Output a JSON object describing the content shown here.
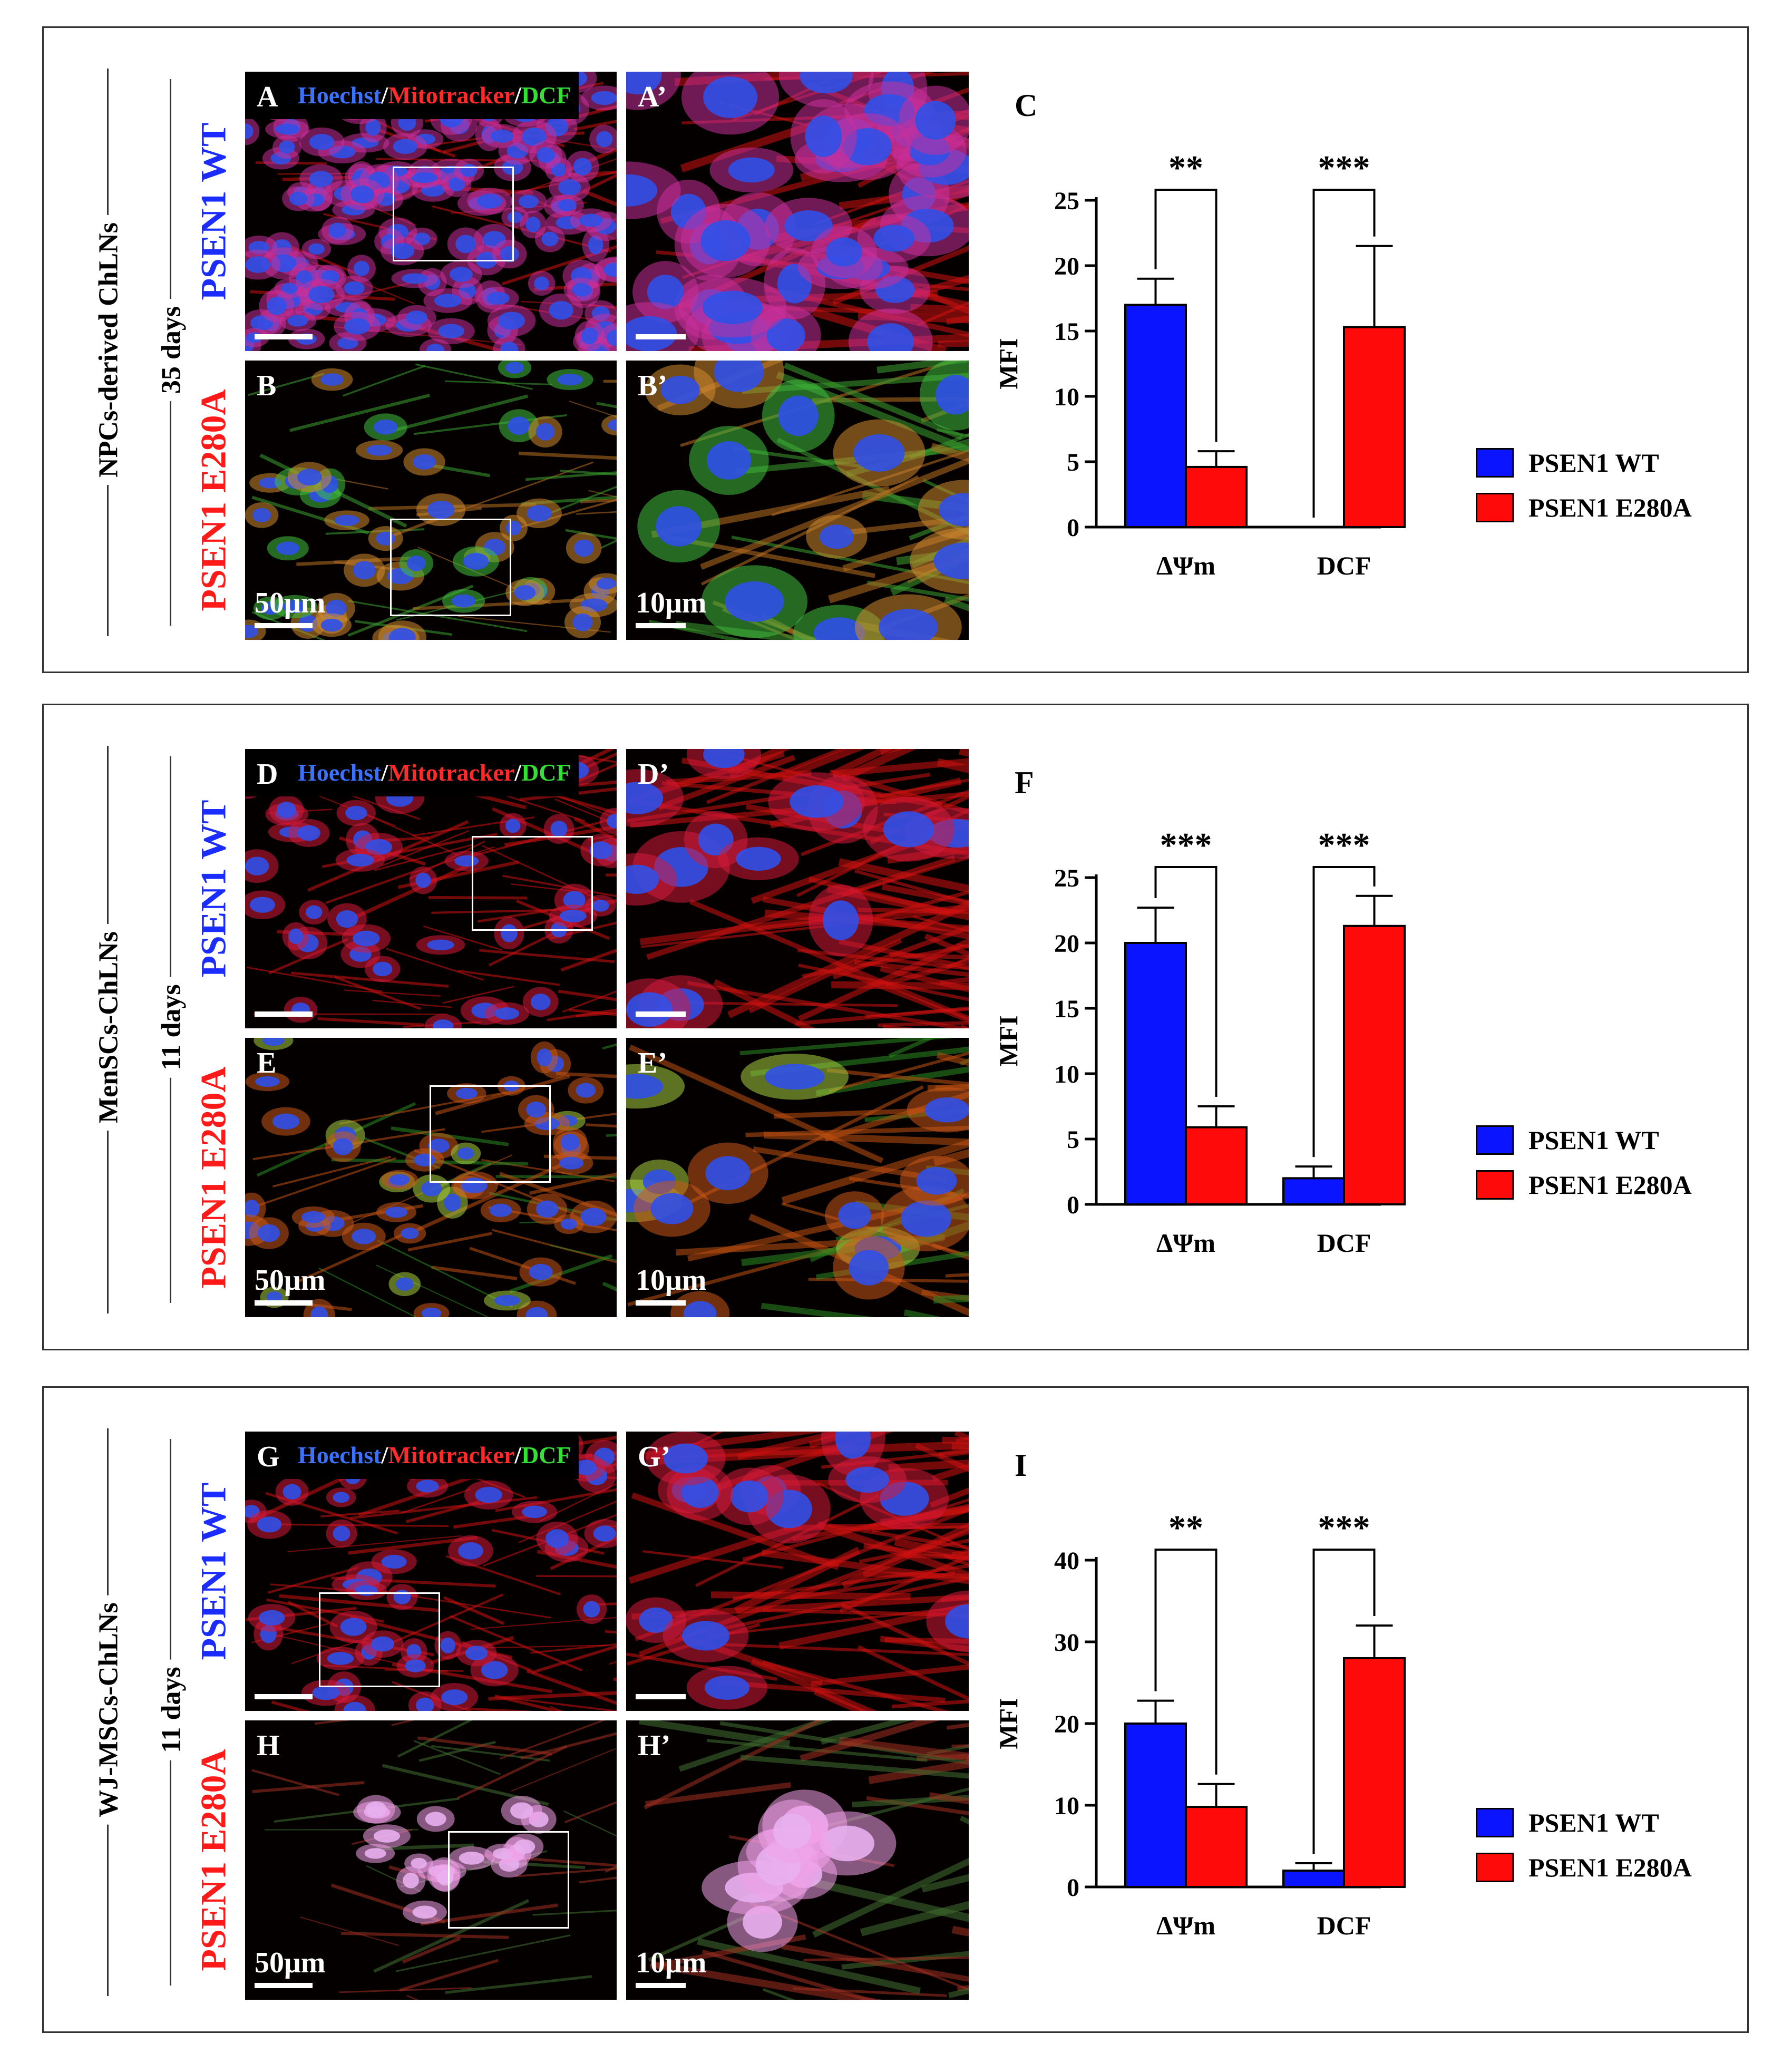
{
  "figure": {
    "rows": [
      {
        "row_label": "NPCs-derived ChLNs",
        "time_label": "35 days",
        "genotype_wt": "PSEN1 WT",
        "genotype_mut": "PSEN1 E280A",
        "stain": {
          "hoechst": "Hoechst",
          "sep": "/",
          "mitotracker": "Mitotracker",
          "dcf": "DCF"
        },
        "panels": {
          "a": "A",
          "a2": "A’",
          "b": "B",
          "b2": "B’"
        },
        "scale_low": "50μm",
        "scale_high": "10μm",
        "chart_letter": "C"
      },
      {
        "row_label": "MenSCs-ChLNs",
        "time_label": "11 days",
        "genotype_wt": "PSEN1 WT",
        "genotype_mut": "PSEN1 E280A",
        "stain": {
          "hoechst": "Hoechst",
          "sep": "/",
          "mitotracker": "Mitotracker",
          "dcf": "DCF"
        },
        "panels": {
          "a": "D",
          "a2": "D’",
          "b": "E",
          "b2": "E’"
        },
        "scale_low": "50μm",
        "scale_high": "10μm",
        "chart_letter": "F"
      },
      {
        "row_label": "WJ-MSCs-ChLNs",
        "time_label": "11 days",
        "genotype_wt": "PSEN1 WT",
        "genotype_mut": "PSEN1 E280A",
        "stain": {
          "hoechst": "Hoechst",
          "sep": "/",
          "mitotracker": "Mitotracker",
          "dcf": "DCF"
        },
        "panels": {
          "a": "G",
          "a2": "G’",
          "b": "H",
          "b2": "H’"
        },
        "scale_low": "50μm",
        "scale_high": "10μm",
        "chart_letter": "I"
      }
    ]
  },
  "colors": {
    "wt": "#0a14ff",
    "mut": "#ff0a0a",
    "wt_label": "#1a2cff",
    "mut_label": "#ff1a1a"
  },
  "chart_data": [
    {
      "type": "bar",
      "title": "",
      "ylabel": "MFI",
      "xlabel": "",
      "ylim": [
        0,
        25
      ],
      "yticks": [
        0,
        5,
        10,
        15,
        20,
        25
      ],
      "categories": [
        "ΔΨm",
        "DCF"
      ],
      "series": [
        {
          "name": "PSEN1 WT",
          "values": [
            17,
            0
          ],
          "errors": [
            2,
            0
          ]
        },
        {
          "name": "PSEN1 E280A",
          "values": [
            4.6,
            15.3
          ],
          "errors": [
            1.2,
            6.2
          ]
        }
      ],
      "significance": [
        "**",
        "***"
      ],
      "legend": "right"
    },
    {
      "type": "bar",
      "title": "",
      "ylabel": "MFI",
      "xlabel": "",
      "ylim": [
        0,
        25
      ],
      "yticks": [
        0,
        5,
        10,
        15,
        20,
        25
      ],
      "categories": [
        "ΔΨm",
        "DCF"
      ],
      "series": [
        {
          "name": "PSEN1 WT",
          "values": [
            20,
            2
          ],
          "errors": [
            2.7,
            0.9
          ]
        },
        {
          "name": "PSEN1 E280A",
          "values": [
            5.9,
            21.3
          ],
          "errors": [
            1.6,
            2.3
          ]
        }
      ],
      "significance": [
        "***",
        "***"
      ],
      "legend": "right"
    },
    {
      "type": "bar",
      "title": "",
      "ylabel": "MFI",
      "xlabel": "",
      "ylim": [
        0,
        40
      ],
      "yticks": [
        0,
        10,
        20,
        30,
        40
      ],
      "categories": [
        "ΔΨm",
        "DCF"
      ],
      "series": [
        {
          "name": "PSEN1 WT",
          "values": [
            20,
            2
          ],
          "errors": [
            2.8,
            0.9
          ]
        },
        {
          "name": "PSEN1 E280A",
          "values": [
            9.8,
            28
          ],
          "errors": [
            2.8,
            4
          ]
        }
      ],
      "significance": [
        "**",
        "***"
      ],
      "legend": "right"
    }
  ]
}
